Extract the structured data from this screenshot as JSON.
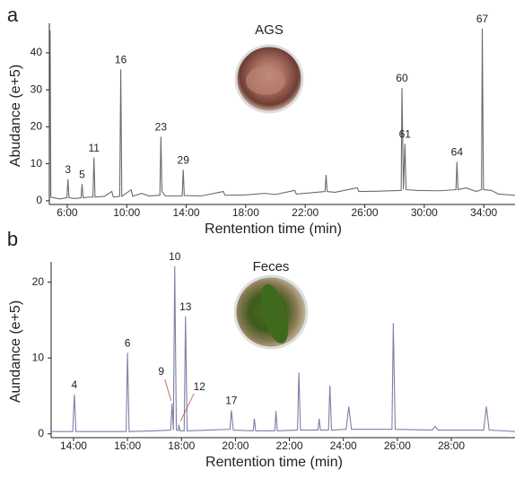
{
  "chart_data": [
    {
      "type": "line",
      "panel": "a",
      "title": "AGS",
      "x_label": "Rentention time (min)",
      "y_label": "Abudance (e+5)",
      "color": "#6b6b6b",
      "x": [
        4.85,
        4.9,
        5.5,
        5.98,
        6.05,
        6.12,
        6.5,
        6.93,
        7.0,
        7.07,
        7.4,
        7.73,
        7.8,
        7.87,
        8.5,
        9.0,
        9.1,
        9.53,
        9.6,
        9.67,
        10.3,
        10.4,
        11,
        11.5,
        12.23,
        12.3,
        12.37,
        12.6,
        13.73,
        13.8,
        13.87,
        15,
        16.5,
        16.6,
        18,
        19.3,
        20,
        21.3,
        21.4,
        23.33,
        23.4,
        23.47,
        24,
        25.5,
        25.6,
        27,
        28.45,
        28.5,
        28.6,
        28.7,
        28.78,
        29.5,
        31,
        32.13,
        32.2,
        32.27,
        32.8,
        33.5,
        33.85,
        33.9,
        33.98,
        34.5,
        35,
        36.1
      ],
      "values": [
        46,
        1,
        0.5,
        0.8,
        5.8,
        0.8,
        0.6,
        0.8,
        4.5,
        0.8,
        1,
        1,
        11.7,
        1,
        1.2,
        2.5,
        1,
        1.2,
        35.5,
        1.2,
        3,
        1.2,
        2,
        1.3,
        1.5,
        17.3,
        2.5,
        1.3,
        1.3,
        8.4,
        1.4,
        1.3,
        2.5,
        1.5,
        1.6,
        2,
        1.7,
        2.8,
        1.8,
        2.5,
        7,
        2.5,
        2.3,
        3.5,
        2.5,
        2.6,
        2.8,
        30.5,
        3,
        15.4,
        3,
        2.8,
        2.7,
        3,
        10.5,
        3,
        3.5,
        2.5,
        3,
        46.5,
        3,
        2.8,
        1.8,
        1.5
      ],
      "xlim": [
        4.8,
        36.1
      ],
      "ylim": [
        -1,
        47
      ],
      "xticks": [
        {
          "value": 6,
          "label": "6:00"
        },
        {
          "value": 10,
          "label": "10:00"
        },
        {
          "value": 14,
          "label": "14:00"
        },
        {
          "value": 18,
          "label": "18:00"
        },
        {
          "value": 22,
          "label": "22:00"
        },
        {
          "value": 26,
          "label": "26:00"
        },
        {
          "value": 30,
          "label": "30:00"
        },
        {
          "value": 34,
          "label": "34:00"
        }
      ],
      "yticks": [
        0,
        10,
        20,
        30,
        40
      ],
      "annotations": [
        {
          "label": "3",
          "x": 6.05,
          "y": 5.8
        },
        {
          "label": "5",
          "x": 7.0,
          "y": 4.5
        },
        {
          "label": "11",
          "x": 7.8,
          "y": 11.7
        },
        {
          "label": "16",
          "x": 9.6,
          "y": 35.5
        },
        {
          "label": "23",
          "x": 12.3,
          "y": 17.3
        },
        {
          "label": "29",
          "x": 13.8,
          "y": 8.4
        },
        {
          "label": "60",
          "x": 28.5,
          "y": 30.5
        },
        {
          "label": "61",
          "x": 28.7,
          "y": 15.4
        },
        {
          "label": "64",
          "x": 32.2,
          "y": 10.5
        },
        {
          "label": "67",
          "x": 33.9,
          "y": 46.5
        }
      ]
    },
    {
      "type": "line",
      "panel": "b",
      "title": "Feces",
      "x_label": "Rentention time (min)",
      "y_label": "Aundance (e+5)",
      "color": "#7c80a6",
      "x": [
        13.2,
        13.97,
        14.03,
        14.09,
        15,
        15.95,
        16.0,
        16.06,
        17,
        17.6,
        17.65,
        17.7,
        17.75,
        17.81,
        17.88,
        17.9,
        17.95,
        18.1,
        18.15,
        18.21,
        19,
        19.8,
        19.85,
        19.92,
        20.66,
        20.7,
        20.75,
        21.46,
        21.5,
        21.55,
        22.3,
        22.35,
        22.41,
        23.06,
        23.1,
        23.15,
        23.45,
        23.5,
        23.56,
        24.1,
        24.2,
        24.3,
        25.8,
        25.85,
        25.92,
        27.3,
        27.4,
        27.5,
        29.2,
        29.3,
        29.4,
        30.36
      ],
      "values": [
        0.3,
        0.3,
        5.2,
        0.3,
        0.3,
        0.3,
        10.7,
        0.3,
        0.4,
        0.5,
        4,
        0.5,
        22.1,
        0.5,
        0.4,
        1.2,
        0.4,
        0.4,
        15.5,
        0.4,
        0.5,
        0.6,
        3.1,
        0.5,
        0.4,
        2,
        0.4,
        0.4,
        3,
        0.4,
        0.5,
        8.1,
        0.5,
        0.5,
        2,
        0.5,
        0.5,
        6.4,
        0.5,
        0.6,
        3.6,
        0.6,
        0.6,
        14.6,
        0.6,
        0.5,
        1,
        0.5,
        0.5,
        3.6,
        0.5,
        0.3
      ],
      "xlim": [
        13.17,
        30.36
      ],
      "ylim": [
        -0.5,
        22.2
      ],
      "xticks": [
        {
          "value": 14,
          "label": "14:00"
        },
        {
          "value": 16,
          "label": "16:00"
        },
        {
          "value": 18,
          "label": "18:00"
        },
        {
          "value": 20,
          "label": "20:00"
        },
        {
          "value": 22,
          "label": "22:00"
        },
        {
          "value": 24,
          "label": "24:00"
        },
        {
          "value": 26,
          "label": "26:00"
        },
        {
          "value": 28,
          "label": "28:00"
        }
      ],
      "yticks": [
        0,
        10,
        20
      ],
      "annotations": [
        {
          "label": "4",
          "x": 14.03,
          "y": 5.2
        },
        {
          "label": "6",
          "x": 16.0,
          "y": 10.7
        },
        {
          "label": "9",
          "x": 17.65,
          "y": 4
        },
        {
          "label": "10",
          "x": 17.75,
          "y": 22.1
        },
        {
          "label": "12",
          "x": 17.9,
          "y": 1.2
        },
        {
          "label": "13",
          "x": 18.15,
          "y": 15.5
        },
        {
          "label": "17",
          "x": 19.85,
          "y": 3.1
        }
      ]
    }
  ]
}
